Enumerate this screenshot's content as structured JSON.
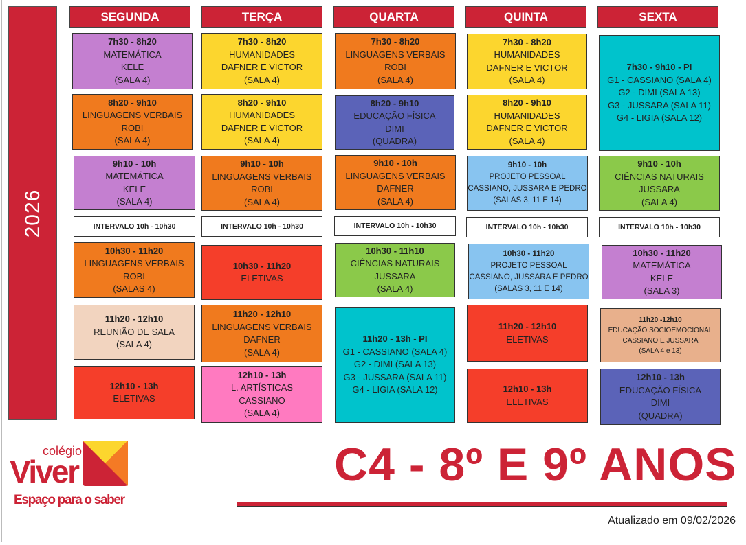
{
  "year": "2026",
  "days": [
    "SEGUNDA",
    "TERÇA",
    "QUARTA",
    "QUINTA",
    "SEXTA"
  ],
  "colors": {
    "brand_red": "#cc2336",
    "purple": "#c47fd0",
    "orange": "#f07a1e",
    "yellow": "#fcd62e",
    "red": "#f53e2a",
    "beige": "#f2d4bf",
    "pink": "#ff7ac0",
    "indigo": "#5b63b8",
    "green": "#8bc94a",
    "cyan": "#00c3cc",
    "lightblue": "#88c4f0",
    "tan": "#e8b08c",
    "white": "#ffffff"
  },
  "columns": [
    [
      {
        "time": "7h30 - 8h20",
        "lines": [
          "MATEMÁTICA",
          "KELE",
          "(SALA 4)"
        ],
        "color": "purple"
      },
      {
        "time": "8h20 - 9h10",
        "lines": [
          "LINGUAGENS VERBAIS",
          "ROBI",
          "(SALA 4)"
        ],
        "color": "orange"
      },
      {
        "time": "9h10 - 10h",
        "lines": [
          "MATEMÁTICA",
          "KELE",
          "(SALA 4)"
        ],
        "color": "purple"
      },
      {
        "time": "INTERVALO 10h - 10h30",
        "lines": [],
        "color": "white"
      },
      {
        "time": "10h30 - 11h20",
        "lines": [
          "LINGUAGENS VERBAIS",
          "ROBI",
          "(SALAS 4)"
        ],
        "color": "orange"
      },
      {
        "time": "11h20 - 12h10",
        "lines": [
          "REUNIÃO DE SALA",
          "(SALA 4)"
        ],
        "color": "beige"
      },
      {
        "time": "12h10 - 13h",
        "lines": [
          "ELETIVAS"
        ],
        "color": "red"
      }
    ],
    [
      {
        "time": "7h30 - 8h20",
        "lines": [
          "HUMANIDADES",
          "DAFNER E VICTOR",
          "(SALA 4)"
        ],
        "color": "yellow"
      },
      {
        "time": "8h20 - 9h10",
        "lines": [
          "HUMANIDADES",
          "DAFNER E VICTOR",
          "(SALA 4)"
        ],
        "color": "yellow"
      },
      {
        "time": "9h10 - 10h",
        "lines": [
          "LINGUAGENS VERBAIS",
          "ROBI",
          "(SALA 4)"
        ],
        "color": "orange"
      },
      {
        "time": "INTERVALO 10h - 10h30",
        "lines": [],
        "color": "white"
      },
      {
        "time": "10h30 - 11h20",
        "lines": [
          "ELETIVAS"
        ],
        "color": "red"
      },
      {
        "time": "11h20 - 12h10",
        "lines": [
          "LINGUAGENS VERBAIS",
          "DAFNER",
          "(SALA 4)"
        ],
        "color": "orange"
      },
      {
        "time": "12h10 - 13h",
        "lines": [
          "L. ARTÍSTICAS",
          "CASSIANO",
          "(SALA 4)"
        ],
        "color": "pink"
      }
    ],
    [
      {
        "time": "7h30 - 8h20",
        "lines": [
          "LINGUAGENS VERBAIS",
          "ROBI",
          "(SALA 4)"
        ],
        "color": "orange"
      },
      {
        "time": "8h20 - 9h10",
        "lines": [
          "EDUCAÇÃO FÍSICA",
          "DIMI",
          "(QUADRA)"
        ],
        "color": "indigo"
      },
      {
        "time": "9h10 - 10h",
        "lines": [
          "LINGUAGENS VERBAIS",
          "DAFNER",
          "(SALA 4)"
        ],
        "color": "orange"
      },
      {
        "time": "INTERVALO 10h - 10h30",
        "lines": [],
        "color": "white"
      },
      {
        "time": "10h30 - 11h10",
        "lines": [
          "CIÊNCIAS NATURAIS",
          "JUSSARA",
          "(SALA 4)"
        ],
        "color": "green"
      },
      {
        "time": "11h20 - 13h - PI",
        "lines": [
          "G1 - CASSIANO (SALA 4)",
          "G2 - DIMI (SALA 13)",
          "G3 - JUSSARA (SALA 11)",
          "G4 - LIGIA (SALA 12)"
        ],
        "color": "cyan"
      }
    ],
    [
      {
        "time": "7h30 - 8h20",
        "lines": [
          "HUMANIDADES",
          "DAFNER E VICTOR",
          "(SALA 4)"
        ],
        "color": "yellow"
      },
      {
        "time": "8h20 - 9h10",
        "lines": [
          "HUMANIDADES",
          "DAFNER E VICTOR",
          "(SALA 4)"
        ],
        "color": "yellow"
      },
      {
        "time": "9h10 - 10h",
        "lines": [
          "PROJETO PESSOAL",
          "CASSIANO, JUSSARA E PEDRO",
          "(SALAS 3, 11 E 14)"
        ],
        "color": "lightblue"
      },
      {
        "time": "INTERVALO 10h - 10h30",
        "lines": [],
        "color": "white"
      },
      {
        "time": "10h30 - 11h20",
        "lines": [
          "PROJETO PESSOAL",
          "CASSIANO, JUSSARA E PEDRO",
          "(SALAS 3, 11 E 14)"
        ],
        "color": "lightblue"
      },
      {
        "time": "11h20 - 12h10",
        "lines": [
          "ELETIVAS"
        ],
        "color": "red"
      },
      {
        "time": "12h10 - 13h",
        "lines": [
          "ELETIVAS"
        ],
        "color": "red"
      }
    ],
    [
      {
        "time": "7h30 - 9h10 - PI",
        "lines": [
          "G1 - CASSIANO (SALA 4)",
          "G2 - DIMI (SALA 13)",
          "G3 - JUSSARA (SALA 11)",
          "G4 - LIGIA (SALA 12)"
        ],
        "color": "cyan"
      },
      {
        "time": "9h10 - 10h",
        "lines": [
          "CIÊNCIAS NATURAIS",
          "JUSSARA",
          "(SALA 4)"
        ],
        "color": "green"
      },
      {
        "time": "INTERVALO 10h - 10h30",
        "lines": [],
        "color": "white"
      },
      {
        "time": "10h30 - 11h20",
        "lines": [
          "MATEMÁTICA",
          "KELE",
          "(SALA 3)"
        ],
        "color": "purple"
      },
      {
        "time": "11h20 -12h10",
        "lines": [
          "EDUCAÇÃO SOCIOEMOCIONAL",
          "CASSIANO E JUSSARA",
          "(SALA 4 e 13)"
        ],
        "color": "tan"
      },
      {
        "time": "12h10 - 13h",
        "lines": [
          "EDUCAÇÃO FÍSICA",
          "DIMI",
          "(QUADRA)"
        ],
        "color": "indigo"
      }
    ]
  ],
  "logo": {
    "small": "colégio",
    "name": "Viver",
    "tagline": "Espaço para o saber"
  },
  "title": "C4 - 8º E 9º ANOS",
  "updated": "Atualizado em 09/02/2026"
}
